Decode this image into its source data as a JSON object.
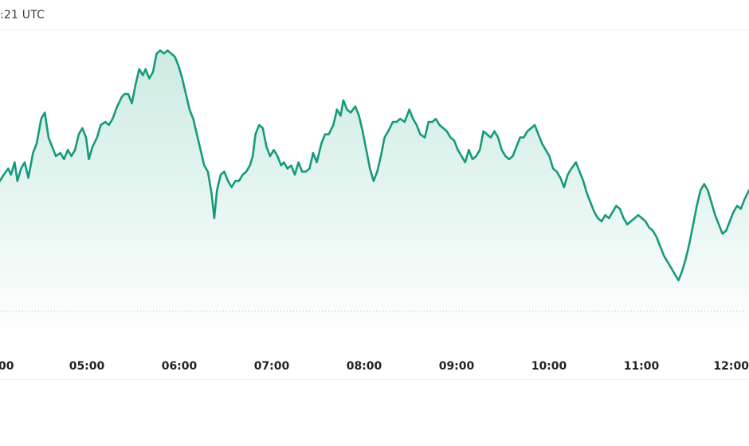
{
  "header": {
    "timestamp_text": ":21 UTC"
  },
  "colors": {
    "line": "#159a7c",
    "area_top": "#cdebe2",
    "area_bottom": "#ffffff",
    "baseline": "#b5b5b5",
    "grid": "#efefef"
  },
  "chart_data": {
    "type": "area",
    "title": "",
    "xlabel": "",
    "ylabel": "",
    "grid": false,
    "x_ticks": [
      "00",
      "05:00",
      "06:00",
      "07:00",
      "08:00",
      "09:00",
      "10:00",
      "11:00",
      "12:00"
    ],
    "x_range_hours": [
      3.91,
      12.09
    ],
    "y_range": [
      0,
      100
    ],
    "baseline_value": 10,
    "series": [
      {
        "values": [
          [
            3.91,
            52
          ],
          [
            3.95,
            54
          ],
          [
            4.0,
            56
          ],
          [
            4.03,
            54
          ],
          [
            4.07,
            58
          ],
          [
            4.1,
            52
          ],
          [
            4.14,
            56
          ],
          [
            4.18,
            58
          ],
          [
            4.22,
            53
          ],
          [
            4.27,
            61
          ],
          [
            4.31,
            64
          ],
          [
            4.36,
            72
          ],
          [
            4.4,
            74
          ],
          [
            4.44,
            66
          ],
          [
            4.48,
            63
          ],
          [
            4.52,
            60
          ],
          [
            4.57,
            61
          ],
          [
            4.61,
            59
          ],
          [
            4.65,
            62
          ],
          [
            4.69,
            60
          ],
          [
            4.73,
            62
          ],
          [
            4.77,
            67
          ],
          [
            4.81,
            69
          ],
          [
            4.85,
            66
          ],
          [
            4.88,
            59
          ],
          [
            4.92,
            63
          ],
          [
            4.97,
            66
          ],
          [
            5.01,
            70
          ],
          [
            5.06,
            71
          ],
          [
            5.1,
            70
          ],
          [
            5.14,
            72
          ],
          [
            5.19,
            76
          ],
          [
            5.24,
            79
          ],
          [
            5.27,
            80
          ],
          [
            5.31,
            80
          ],
          [
            5.35,
            77
          ],
          [
            5.39,
            83
          ],
          [
            5.43,
            88
          ],
          [
            5.47,
            86
          ],
          [
            5.5,
            88
          ],
          [
            5.54,
            85
          ],
          [
            5.58,
            87
          ],
          [
            5.62,
            93
          ],
          [
            5.66,
            94
          ],
          [
            5.7,
            93
          ],
          [
            5.74,
            94
          ],
          [
            5.78,
            93
          ],
          [
            5.82,
            92
          ],
          [
            5.86,
            89
          ],
          [
            5.9,
            85
          ],
          [
            5.94,
            80
          ],
          [
            5.98,
            75
          ],
          [
            6.02,
            72
          ],
          [
            6.06,
            67
          ],
          [
            6.1,
            62
          ],
          [
            6.14,
            57
          ],
          [
            6.18,
            55
          ],
          [
            6.22,
            48
          ],
          [
            6.25,
            40
          ],
          [
            6.28,
            49
          ],
          [
            6.32,
            54
          ],
          [
            6.36,
            55
          ],
          [
            6.4,
            52
          ],
          [
            6.44,
            50
          ],
          [
            6.48,
            52
          ],
          [
            6.52,
            52
          ],
          [
            6.56,
            54
          ],
          [
            6.6,
            55
          ],
          [
            6.64,
            57
          ],
          [
            6.67,
            60
          ],
          [
            6.7,
            67
          ],
          [
            6.74,
            70
          ],
          [
            6.78,
            69
          ],
          [
            6.82,
            63
          ],
          [
            6.86,
            60
          ],
          [
            6.9,
            62
          ],
          [
            6.94,
            60
          ],
          [
            6.98,
            57
          ],
          [
            7.01,
            58
          ],
          [
            7.05,
            56
          ],
          [
            7.09,
            57
          ],
          [
            7.13,
            54
          ],
          [
            7.17,
            58
          ],
          [
            7.21,
            55
          ],
          [
            7.25,
            55
          ],
          [
            7.29,
            56
          ],
          [
            7.33,
            61
          ],
          [
            7.37,
            58
          ],
          [
            7.42,
            64
          ],
          [
            7.46,
            67
          ],
          [
            7.5,
            67
          ],
          [
            7.55,
            70
          ],
          [
            7.59,
            75
          ],
          [
            7.63,
            73
          ],
          [
            7.66,
            78
          ],
          [
            7.7,
            75
          ],
          [
            7.74,
            74
          ],
          [
            7.79,
            76
          ],
          [
            7.83,
            73
          ],
          [
            7.87,
            68
          ],
          [
            7.91,
            62
          ],
          [
            7.95,
            56
          ],
          [
            7.99,
            52
          ],
          [
            8.03,
            55
          ],
          [
            8.07,
            60
          ],
          [
            8.11,
            66
          ],
          [
            8.15,
            68
          ],
          [
            8.2,
            71
          ],
          [
            8.24,
            71
          ],
          [
            8.28,
            72
          ],
          [
            8.33,
            71
          ],
          [
            8.38,
            75
          ],
          [
            8.42,
            72
          ],
          [
            8.46,
            70
          ],
          [
            8.5,
            67
          ],
          [
            8.55,
            66
          ],
          [
            8.59,
            71
          ],
          [
            8.63,
            71
          ],
          [
            8.67,
            72
          ],
          [
            8.71,
            70
          ],
          [
            8.75,
            69
          ],
          [
            8.79,
            68
          ],
          [
            8.83,
            66
          ],
          [
            8.87,
            65
          ],
          [
            8.91,
            62
          ],
          [
            8.95,
            60
          ],
          [
            8.99,
            58
          ],
          [
            9.03,
            62
          ],
          [
            9.07,
            59
          ],
          [
            9.11,
            60
          ],
          [
            9.15,
            62
          ],
          [
            9.19,
            68
          ],
          [
            9.23,
            67
          ],
          [
            9.27,
            66
          ],
          [
            9.31,
            68
          ],
          [
            9.35,
            66
          ],
          [
            9.39,
            62
          ],
          [
            9.43,
            60
          ],
          [
            9.47,
            59
          ],
          [
            9.51,
            60
          ],
          [
            9.55,
            63
          ],
          [
            9.59,
            66
          ],
          [
            9.63,
            66
          ],
          [
            9.67,
            68
          ],
          [
            9.71,
            69
          ],
          [
            9.75,
            70
          ],
          [
            9.79,
            67
          ],
          [
            9.83,
            64
          ],
          [
            9.87,
            62
          ],
          [
            9.91,
            60
          ],
          [
            9.95,
            56
          ],
          [
            9.99,
            55
          ],
          [
            10.03,
            53
          ],
          [
            10.07,
            50
          ],
          [
            10.11,
            54
          ],
          [
            10.15,
            56
          ],
          [
            10.2,
            58
          ],
          [
            10.24,
            55
          ],
          [
            10.28,
            52
          ],
          [
            10.32,
            48
          ],
          [
            10.36,
            45
          ],
          [
            10.4,
            42
          ],
          [
            10.44,
            40
          ],
          [
            10.48,
            39
          ],
          [
            10.52,
            41
          ],
          [
            10.56,
            40
          ],
          [
            10.6,
            42
          ],
          [
            10.64,
            44
          ],
          [
            10.68,
            43
          ],
          [
            10.72,
            40
          ],
          [
            10.76,
            38
          ],
          [
            10.8,
            39
          ],
          [
            10.84,
            40
          ],
          [
            10.88,
            41
          ],
          [
            10.92,
            40
          ],
          [
            10.96,
            39
          ],
          [
            11.0,
            37
          ],
          [
            11.04,
            36
          ],
          [
            11.08,
            34
          ],
          [
            11.12,
            31
          ],
          [
            11.16,
            28
          ],
          [
            11.2,
            26
          ],
          [
            11.24,
            24
          ],
          [
            11.28,
            22
          ],
          [
            11.32,
            20
          ],
          [
            11.36,
            23
          ],
          [
            11.4,
            27
          ],
          [
            11.44,
            32
          ],
          [
            11.48,
            38
          ],
          [
            11.52,
            44
          ],
          [
            11.56,
            49
          ],
          [
            11.6,
            51
          ],
          [
            11.64,
            49
          ],
          [
            11.68,
            45
          ],
          [
            11.72,
            41
          ],
          [
            11.76,
            38
          ],
          [
            11.8,
            35
          ],
          [
            11.84,
            36
          ],
          [
            11.88,
            39
          ],
          [
            11.92,
            42
          ],
          [
            11.96,
            44
          ],
          [
            12.0,
            43
          ],
          [
            12.04,
            46
          ],
          [
            12.09,
            49
          ]
        ]
      }
    ]
  }
}
